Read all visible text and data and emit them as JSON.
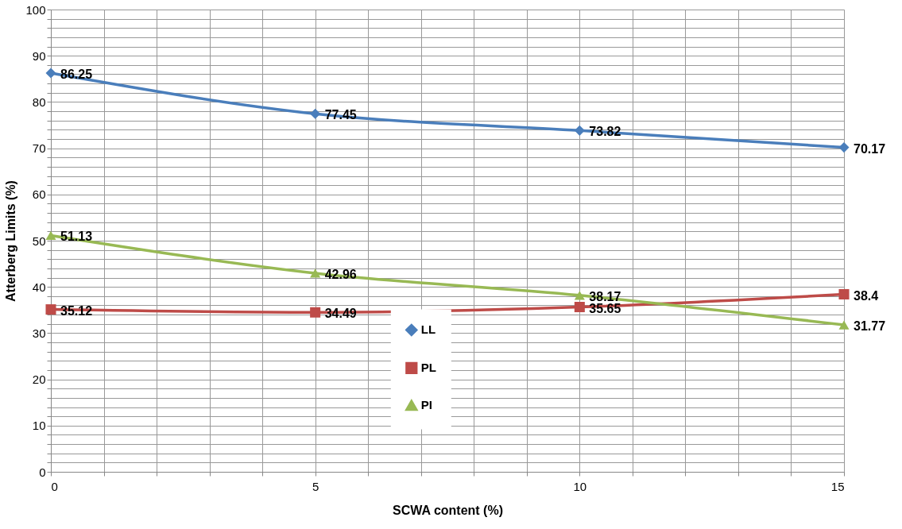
{
  "chart_data": {
    "type": "line",
    "xlabel": "SCWA content (%)",
    "ylabel": "Atterberg Limits (%)",
    "x": [
      0,
      5,
      10,
      15
    ],
    "series": [
      {
        "name": "LL",
        "color": "#4a7ebb",
        "marker": "diamond",
        "values": [
          86.25,
          77.45,
          73.82,
          70.17
        ]
      },
      {
        "name": "PL",
        "color": "#be4b48",
        "marker": "square",
        "values": [
          35.12,
          34.49,
          35.65,
          38.4
        ]
      },
      {
        "name": "PI",
        "color": "#98b954",
        "marker": "triangle",
        "values": [
          51.13,
          42.96,
          38.17,
          31.77
        ]
      }
    ],
    "xlim": [
      0,
      15
    ],
    "xticks": [
      0,
      {
        "value": 1,
        "label": null
      },
      {
        "value": 2,
        "label": null
      },
      {
        "value": 3,
        "label": null
      },
      {
        "value": 4,
        "label": null
      },
      5,
      {
        "value": 6,
        "label": null
      },
      {
        "value": 7,
        "label": null
      },
      {
        "value": 8,
        "label": null
      },
      {
        "value": 9,
        "label": null
      },
      10,
      {
        "value": 11,
        "label": null
      },
      {
        "value": 12,
        "label": null
      },
      {
        "value": 13,
        "label": null
      },
      {
        "value": 14,
        "label": null
      },
      15
    ],
    "ylim": [
      0,
      100
    ],
    "yticks": [
      0,
      {
        "value": 2,
        "label": null
      },
      {
        "value": 4,
        "label": null
      },
      {
        "value": 6,
        "label": null
      },
      {
        "value": 8,
        "label": null
      },
      10,
      {
        "value": 12,
        "label": null
      },
      {
        "value": 14,
        "label": null
      },
      {
        "value": 16,
        "label": null
      },
      {
        "value": 18,
        "label": null
      },
      20,
      {
        "value": 22,
        "label": null
      },
      {
        "value": 24,
        "label": null
      },
      {
        "value": 26,
        "label": null
      },
      {
        "value": 28,
        "label": null
      },
      30,
      {
        "value": 32,
        "label": null
      },
      {
        "value": 34,
        "label": null
      },
      {
        "value": 36,
        "label": null
      },
      {
        "value": 38,
        "label": null
      },
      40,
      {
        "value": 42,
        "label": null
      },
      {
        "value": 44,
        "label": null
      },
      {
        "value": 46,
        "label": null
      },
      {
        "value": 48,
        "label": null
      },
      50,
      {
        "value": 52,
        "label": null
      },
      {
        "value": 54,
        "label": null
      },
      {
        "value": 56,
        "label": null
      },
      {
        "value": 58,
        "label": null
      },
      60,
      {
        "value": 62,
        "label": null
      },
      {
        "value": 64,
        "label": null
      },
      {
        "value": 66,
        "label": null
      },
      {
        "value": 68,
        "label": null
      },
      70,
      {
        "value": 72,
        "label": null
      },
      {
        "value": 74,
        "label": null
      },
      {
        "value": 76,
        "label": null
      },
      {
        "value": 78,
        "label": null
      },
      80,
      {
        "value": 82,
        "label": null
      },
      {
        "value": 84,
        "label": null
      },
      {
        "value": 86,
        "label": null
      },
      {
        "value": 88,
        "label": null
      },
      90,
      {
        "value": 92,
        "label": null
      },
      {
        "value": 94,
        "label": null
      },
      {
        "value": 96,
        "label": null
      },
      {
        "value": 98,
        "label": null
      },
      100
    ],
    "grid": true,
    "legend": "bottom",
    "data_labels": true,
    "line_style": "solid"
  }
}
